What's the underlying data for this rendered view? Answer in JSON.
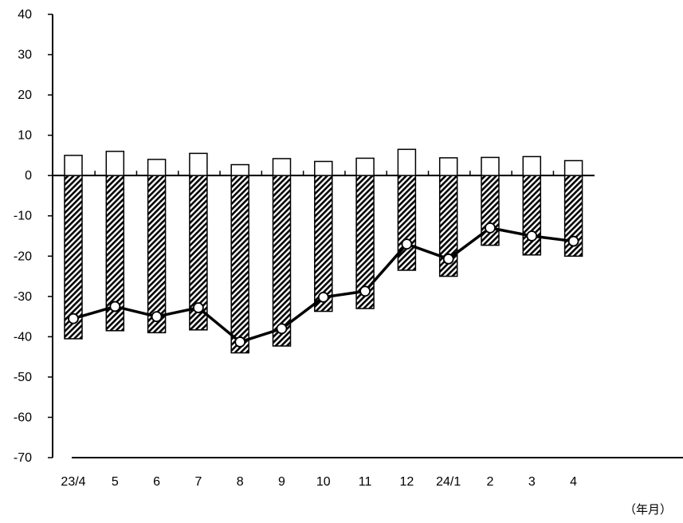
{
  "chart_data": {
    "type": "bar",
    "categories": [
      "23/4",
      "5",
      "6",
      "7",
      "8",
      "9",
      "10",
      "11",
      "12",
      "24/1",
      "2",
      "3",
      "4"
    ],
    "ylim": [
      -70,
      40
    ],
    "y_ticks": [
      "40",
      "30",
      "20",
      "10",
      "0",
      "-10",
      "-20",
      "-30",
      "-40",
      "-50",
      "-60",
      "-70"
    ],
    "x_unit_label": "（年月）",
    "series": [
      {
        "kind": "bar",
        "pattern": "white",
        "values": [
          5.0,
          6.0,
          4.0,
          5.5,
          2.7,
          4.2,
          3.5,
          4.3,
          6.5,
          4.4,
          4.5,
          4.7,
          3.7
        ]
      },
      {
        "kind": "bar",
        "pattern": "hatched",
        "values": [
          -40.5,
          -38.5,
          -39.0,
          -38.3,
          -44.0,
          -42.3,
          -33.7,
          -33.0,
          -23.5,
          -25.0,
          -17.3,
          -19.7,
          -20.0
        ]
      },
      {
        "kind": "line",
        "marker": "circle",
        "values": [
          -35.5,
          -32.5,
          -35.0,
          -32.8,
          -41.3,
          -38.0,
          -30.2,
          -28.7,
          -17.0,
          -20.7,
          -13.0,
          -15.0,
          -16.3
        ]
      }
    ],
    "colors": {
      "bar_fill": "#ffffff",
      "hatch": "#000000",
      "line": "#000000",
      "marker_fill": "#ffffff"
    },
    "grid": false,
    "legend": "none"
  }
}
